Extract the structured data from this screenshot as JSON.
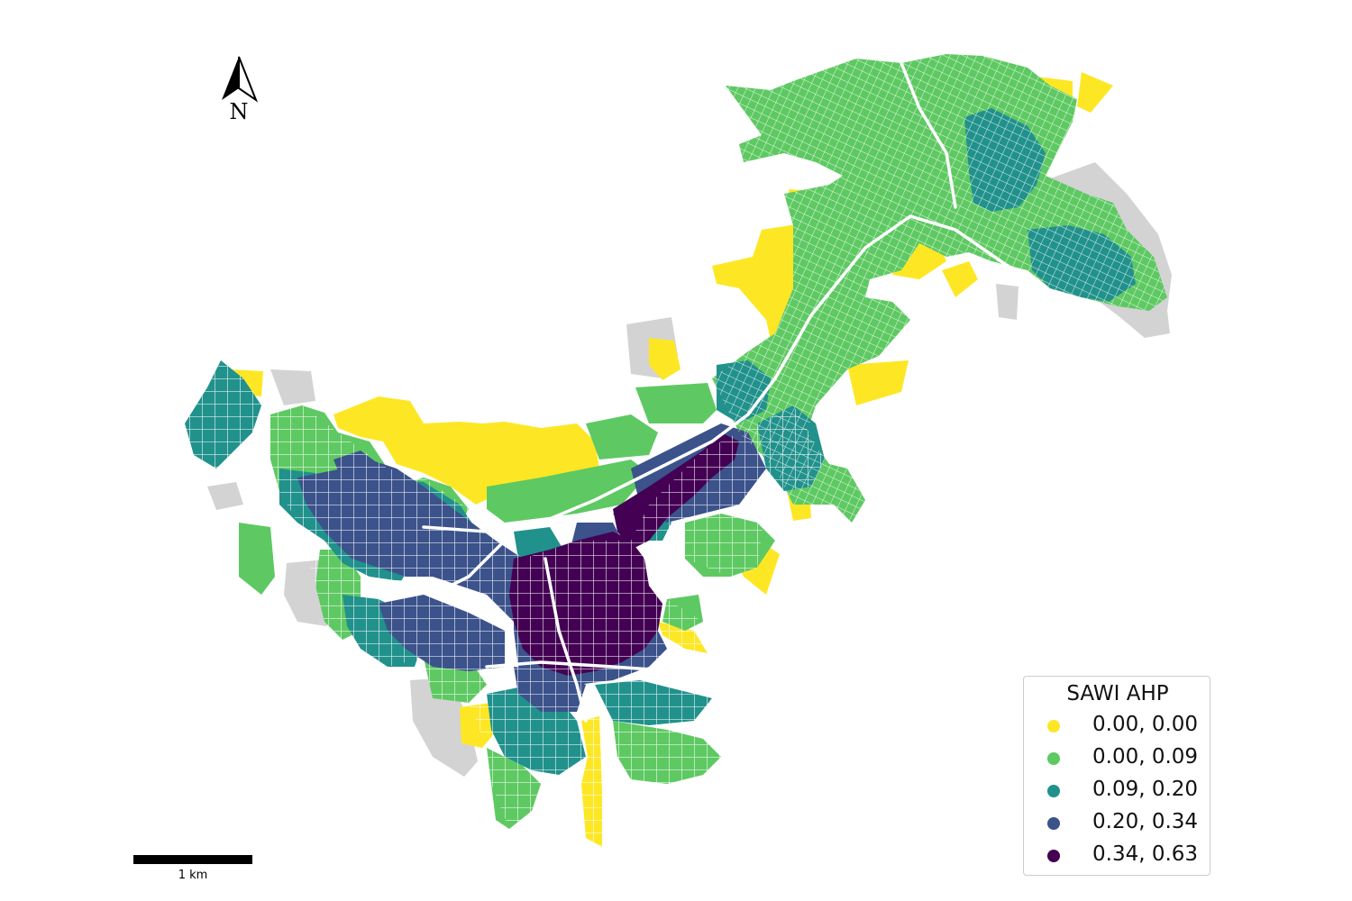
{
  "map": {
    "north_label": "N",
    "scale_label": "1 km",
    "colors": {
      "no_data": "#d3d3d3",
      "street": "#ffffff"
    }
  },
  "legend": {
    "title": "SAWI AHP",
    "items": [
      {
        "label": "0.00, 0.00",
        "color": "#fde725"
      },
      {
        "label": "0.00, 0.09",
        "color": "#5ec962"
      },
      {
        "label": "0.09, 0.20",
        "color": "#21918c"
      },
      {
        "label": "0.20, 0.34",
        "color": "#3b528b"
      },
      {
        "label": "0.34, 0.63",
        "color": "#440154"
      }
    ]
  }
}
